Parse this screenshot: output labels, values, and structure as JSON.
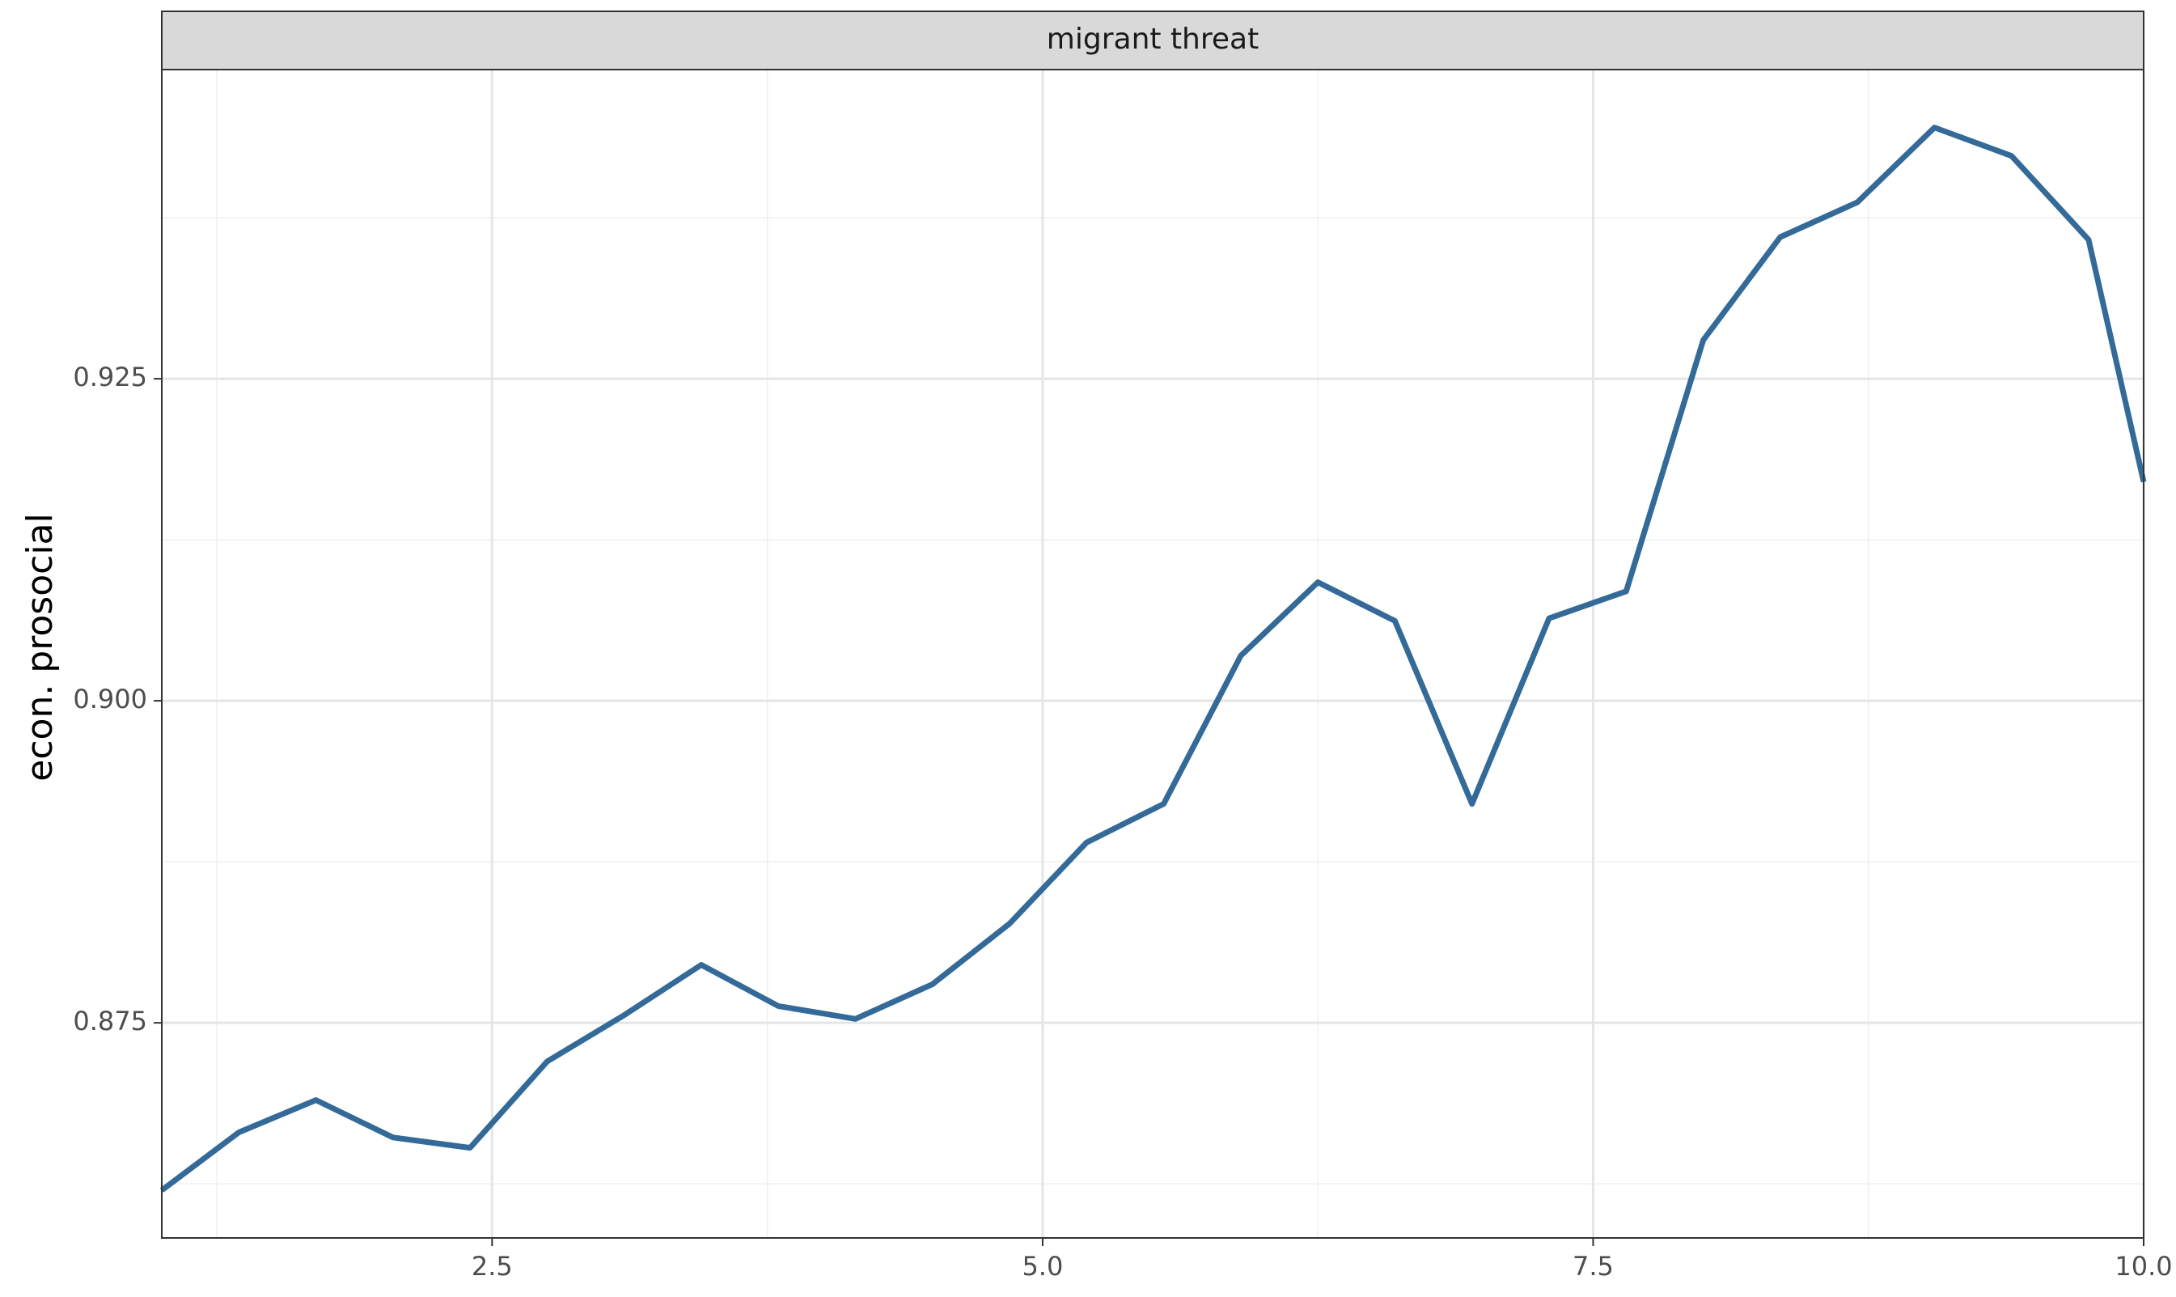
{
  "chart_data": {
    "type": "line",
    "facet_label": "migrant threat",
    "title": "",
    "xlabel": "",
    "ylabel": "econ. prosocial",
    "xlim": [
      1.0,
      10.0
    ],
    "ylim": [
      0.8583,
      0.949
    ],
    "x_ticks": [
      2.5,
      5.0,
      7.5,
      10.0
    ],
    "x_tick_labels": [
      "2.5",
      "5.0",
      "7.5",
      "10.0"
    ],
    "y_ticks": [
      0.875,
      0.9,
      0.925
    ],
    "y_tick_labels": [
      "0.875",
      "0.900",
      "0.925"
    ],
    "grid": true,
    "legend": "none",
    "series": [
      {
        "color": "#336a98",
        "x": [
          1.0,
          1.35,
          1.7,
          2.05,
          2.4,
          2.75,
          3.1,
          3.45,
          3.8,
          4.15,
          4.5,
          4.85,
          5.2,
          5.55,
          5.9,
          6.25,
          6.6,
          6.95,
          7.3,
          7.65,
          8.0,
          8.35,
          8.7,
          9.05,
          9.4,
          9.75,
          10.0
        ],
        "y": [
          0.862,
          0.8665,
          0.869,
          0.8661,
          0.8653,
          0.872,
          0.8756,
          0.8795,
          0.8763,
          0.8753,
          0.878,
          0.8827,
          0.889,
          0.892,
          0.9035,
          0.9092,
          0.9062,
          0.892,
          0.9064,
          0.9085,
          0.928,
          0.936,
          0.9387,
          0.9445,
          0.9423,
          0.9358,
          0.917
        ]
      }
    ]
  }
}
